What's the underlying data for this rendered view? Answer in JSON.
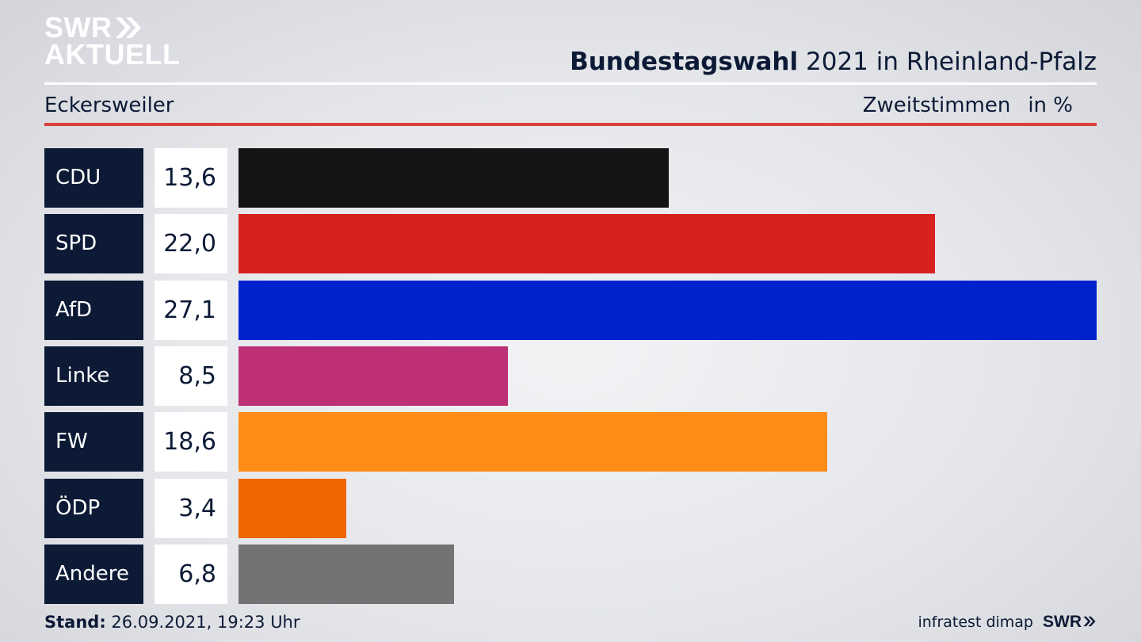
{
  "brand": {
    "line1": "SWR",
    "line2": "AKTUELL"
  },
  "header": {
    "title_bold": "Bundestagswahl",
    "title_rest": "2021 in Rheinland-Pfalz"
  },
  "subheader": {
    "region": "Eckersweiler",
    "measure": "Zweitstimmen",
    "unit": "in %"
  },
  "footer": {
    "stand_label": "Stand:",
    "stand_value": "26.09.2021, 19:23 Uhr",
    "source": "infratest dimap",
    "logo": "SWR"
  },
  "colors": {
    "navy": "#0c1a36",
    "accent_red": "#d9413a"
  },
  "chart_data": {
    "type": "bar",
    "orientation": "horizontal",
    "categories": [
      "CDU",
      "SPD",
      "AfD",
      "Linke",
      "FW",
      "ÖDP",
      "Andere"
    ],
    "values": [
      13.6,
      22.0,
      27.1,
      8.5,
      18.6,
      3.4,
      6.8
    ],
    "labels": [
      "13,6",
      "22,0",
      "27,1",
      "8,5",
      "18,6",
      "3,4",
      "6,8"
    ],
    "colors": [
      "#141414",
      "#d82020",
      "#0022cc",
      "#be3075",
      "#ff8c17",
      "#ee6600",
      "#737373"
    ],
    "xlim": [
      0,
      27.1
    ]
  }
}
